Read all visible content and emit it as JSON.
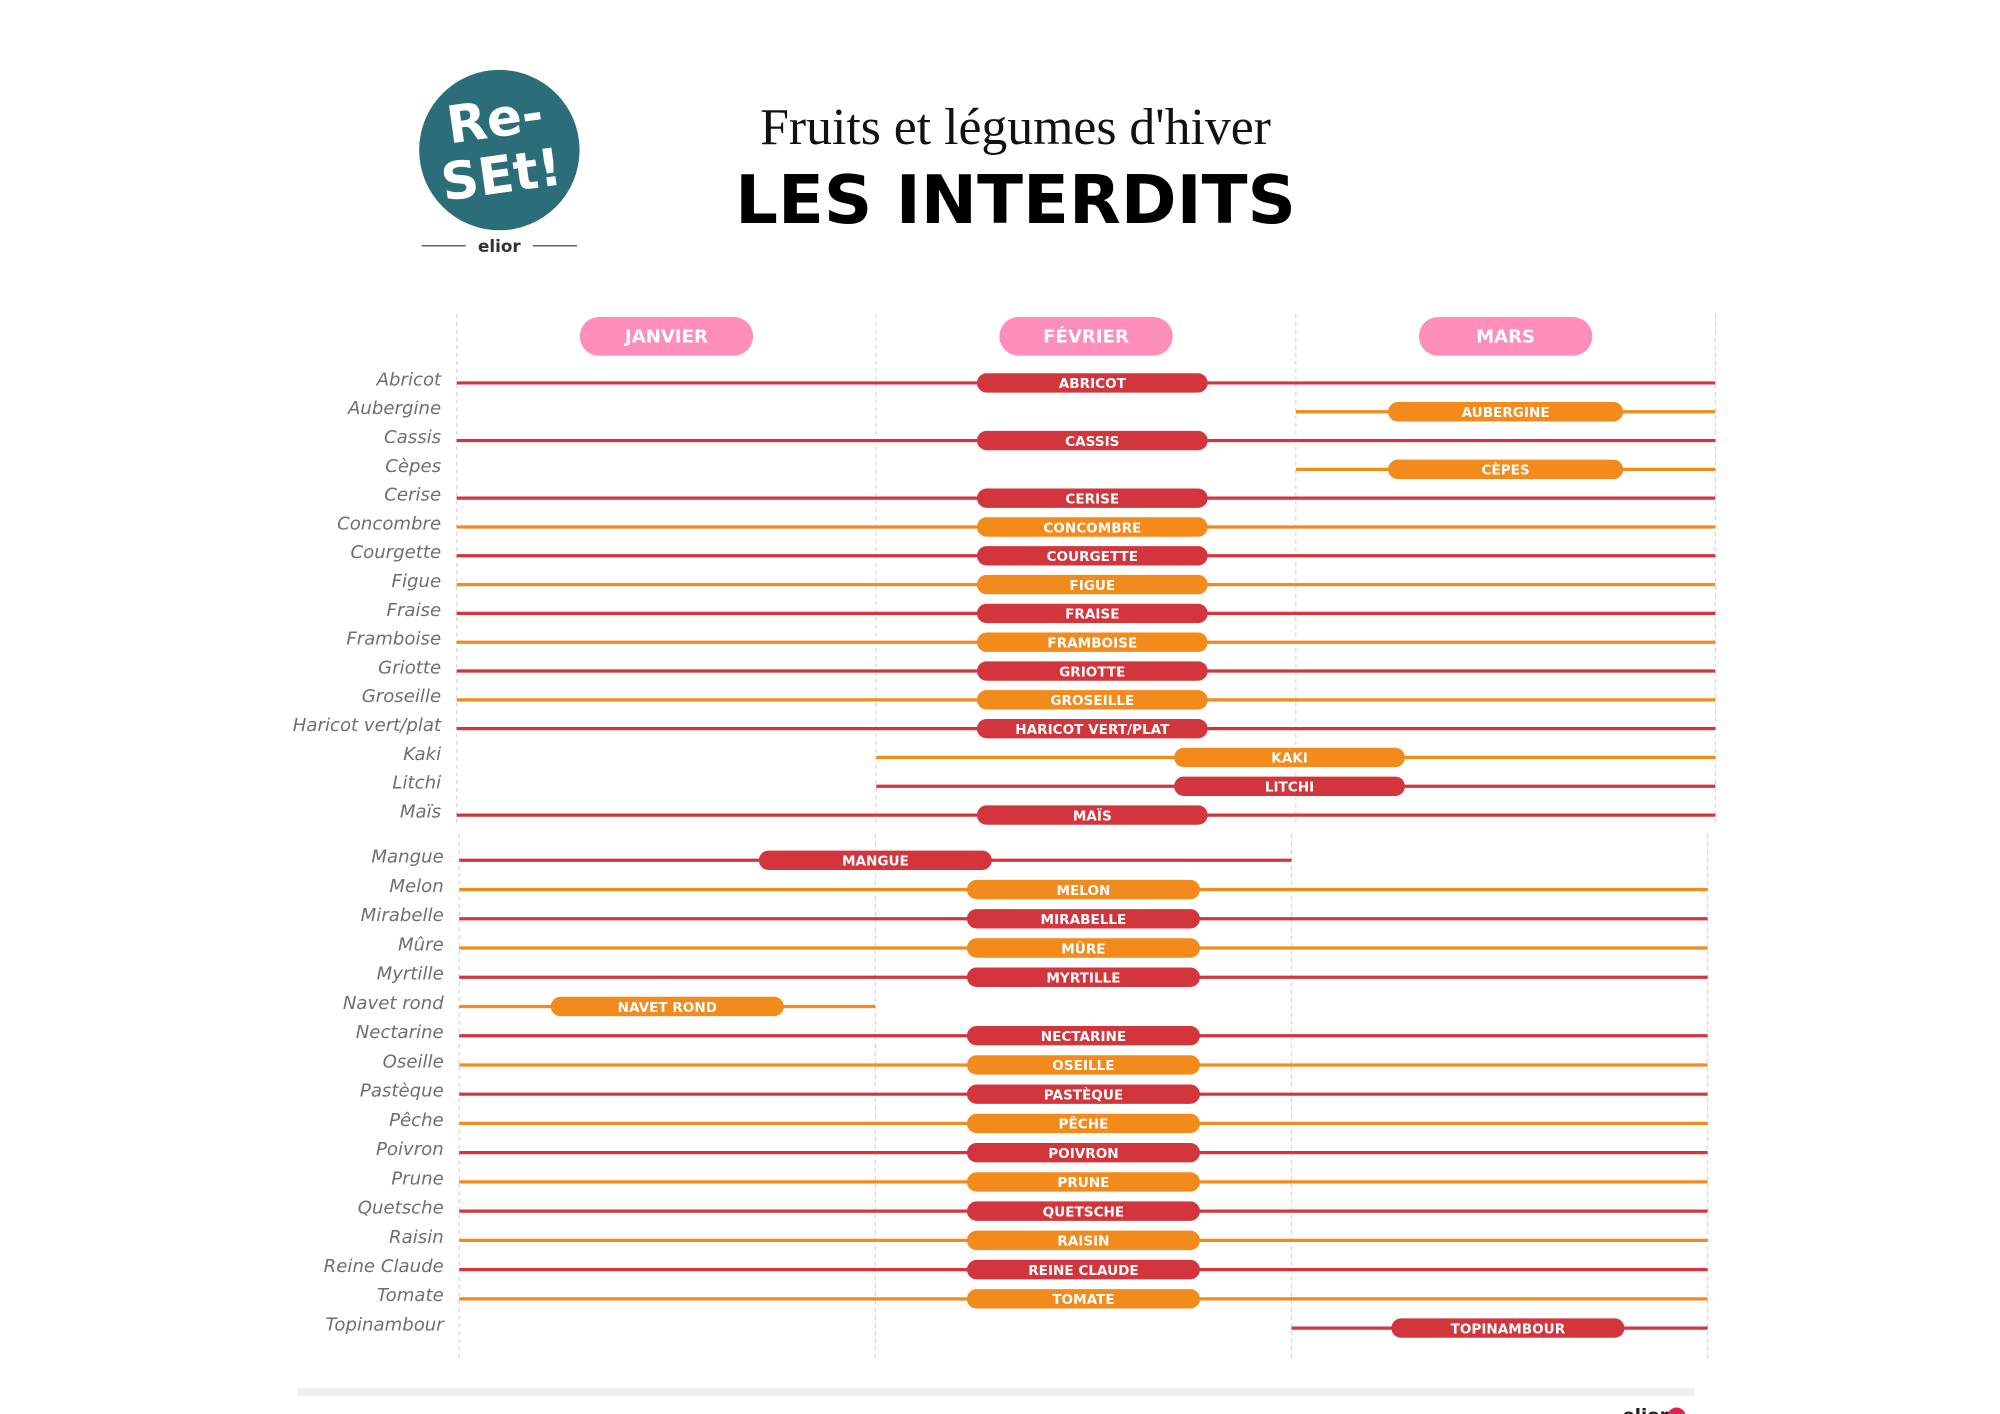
{
  "logo": {
    "line1": "Re-",
    "line2": "SEt!",
    "brand": "elior"
  },
  "footer": "elior",
  "chart_data": [
    {
      "type": "gantt",
      "title": "Fruits et légumes d'hiver",
      "subtitle": "LES INTERDITS",
      "categories": [
        "JANVIER",
        "FÉVRIER",
        "MARS"
      ],
      "category_color": "#fd8db9",
      "xlim": [
        0,
        3
      ],
      "xticks": [
        0,
        1,
        2,
        3
      ],
      "grid": true,
      "rows": [
        {
          "name": "Abricot",
          "label": "ABRICOT",
          "color": "#d2363c",
          "line": [
            0,
            3
          ],
          "pill": [
            1.24,
            1.79
          ]
        },
        {
          "name": "Aubergine",
          "label": "AUBERGINE",
          "color": "#f28a1c",
          "line": [
            2,
            3
          ],
          "pill": [
            2.22,
            2.78
          ]
        },
        {
          "name": "Cassis",
          "label": "CASSIS",
          "color": "#d2363c",
          "line": [
            0,
            3
          ],
          "pill": [
            1.24,
            1.79
          ]
        },
        {
          "name": "Cèpes",
          "label": "CÈPES",
          "color": "#f28a1c",
          "line": [
            2,
            3
          ],
          "pill": [
            2.22,
            2.78
          ]
        },
        {
          "name": "Cerise",
          "label": "CERISE",
          "color": "#d2363c",
          "line": [
            0,
            3
          ],
          "pill": [
            1.24,
            1.79
          ]
        },
        {
          "name": "Concombre",
          "label": "CONCOMBRE",
          "color": "#f28a1c",
          "line": [
            0,
            3
          ],
          "pill": [
            1.24,
            1.79
          ]
        },
        {
          "name": "Courgette",
          "label": "COURGETTE",
          "color": "#d2363c",
          "line": [
            0,
            3
          ],
          "pill": [
            1.24,
            1.79
          ]
        },
        {
          "name": "Figue",
          "label": "FIGUE",
          "color": "#f28a1c",
          "line": [
            0,
            3
          ],
          "pill": [
            1.24,
            1.79
          ]
        },
        {
          "name": "Fraise",
          "label": "FRAISE",
          "color": "#d2363c",
          "line": [
            0,
            3
          ],
          "pill": [
            1.24,
            1.79
          ]
        },
        {
          "name": "Framboise",
          "label": "FRAMBOISE",
          "color": "#f28a1c",
          "line": [
            0,
            3
          ],
          "pill": [
            1.24,
            1.79
          ]
        },
        {
          "name": "Griotte",
          "label": "GRIOTTE",
          "color": "#d2363c",
          "line": [
            0,
            3
          ],
          "pill": [
            1.24,
            1.79
          ]
        },
        {
          "name": "Groseille",
          "label": "GROSEILLE",
          "color": "#f28a1c",
          "line": [
            0,
            3
          ],
          "pill": [
            1.24,
            1.79
          ]
        },
        {
          "name": "Haricot vert/plat",
          "label": "HARICOT VERT/PLAT",
          "color": "#d2363c",
          "line": [
            0,
            3
          ],
          "pill": [
            1.24,
            1.79
          ]
        },
        {
          "name": "Kaki",
          "label": "KAKI",
          "color": "#f28a1c",
          "line": [
            1,
            3
          ],
          "pill": [
            1.71,
            2.26
          ]
        },
        {
          "name": "Litchi",
          "label": "LITCHI",
          "color": "#d2363c",
          "line": [
            1,
            3
          ],
          "pill": [
            1.71,
            2.26
          ]
        },
        {
          "name": "Maïs",
          "label": "MAÏS",
          "color": "#d2363c",
          "line": [
            0,
            3
          ],
          "pill": [
            1.24,
            1.79
          ]
        }
      ]
    },
    {
      "type": "gantt",
      "xlim": [
        0,
        3
      ],
      "xticks": [
        0,
        1,
        2,
        3
      ],
      "grid": true,
      "rows": [
        {
          "name": "Mangue",
          "label": "MANGUE",
          "color": "#d2363c",
          "line": [
            0,
            2
          ],
          "pill": [
            0.72,
            1.28
          ]
        },
        {
          "name": "Melon",
          "label": "MELON",
          "color": "#f28a1c",
          "line": [
            0,
            3
          ],
          "pill": [
            1.22,
            1.78
          ]
        },
        {
          "name": "Mirabelle",
          "label": "MIRABELLE",
          "color": "#d2363c",
          "line": [
            0,
            3
          ],
          "pill": [
            1.22,
            1.78
          ]
        },
        {
          "name": "Mûre",
          "label": "MÛRE",
          "color": "#f28a1c",
          "line": [
            0,
            3
          ],
          "pill": [
            1.22,
            1.78
          ]
        },
        {
          "name": "Myrtille",
          "label": "MYRTILLE",
          "color": "#d2363c",
          "line": [
            0,
            3
          ],
          "pill": [
            1.22,
            1.78
          ]
        },
        {
          "name": "Navet rond",
          "label": "NAVET ROND",
          "color": "#f28a1c",
          "line": [
            0,
            1
          ],
          "pill": [
            0.22,
            0.78
          ]
        },
        {
          "name": "Nectarine",
          "label": "NECTARINE",
          "color": "#d2363c",
          "line": [
            0,
            3
          ],
          "pill": [
            1.22,
            1.78
          ]
        },
        {
          "name": "Oseille",
          "label": "OSEILLE",
          "color": "#f28a1c",
          "line": [
            0,
            3
          ],
          "pill": [
            1.22,
            1.78
          ]
        },
        {
          "name": "Pastèque",
          "label": "PASTÈQUE",
          "color": "#d2363c",
          "line": [
            0,
            3
          ],
          "pill": [
            1.22,
            1.78
          ]
        },
        {
          "name": "Pêche",
          "label": "PÊCHE",
          "color": "#f28a1c",
          "line": [
            0,
            3
          ],
          "pill": [
            1.22,
            1.78
          ]
        },
        {
          "name": "Poivron",
          "label": "POIVRON",
          "color": "#d2363c",
          "line": [
            0,
            3
          ],
          "pill": [
            1.22,
            1.78
          ]
        },
        {
          "name": "Prune",
          "label": "PRUNE",
          "color": "#f28a1c",
          "line": [
            0,
            3
          ],
          "pill": [
            1.22,
            1.78
          ]
        },
        {
          "name": "Quetsche",
          "label": "QUETSCHE",
          "color": "#d2363c",
          "line": [
            0,
            3
          ],
          "pill": [
            1.22,
            1.78
          ]
        },
        {
          "name": "Raisin",
          "label": "RAISIN",
          "color": "#f28a1c",
          "line": [
            0,
            3
          ],
          "pill": [
            1.22,
            1.78
          ]
        },
        {
          "name": "Reine Claude",
          "label": "REINE CLAUDE",
          "color": "#d2363c",
          "line": [
            0,
            3
          ],
          "pill": [
            1.22,
            1.78
          ]
        },
        {
          "name": "Tomate",
          "label": "TOMATE",
          "color": "#f28a1c",
          "line": [
            0,
            3
          ],
          "pill": [
            1.22,
            1.78
          ]
        },
        {
          "name": "Topinambour",
          "label": "TOPINAMBOUR",
          "color": "#d2363c",
          "line": [
            2,
            3
          ],
          "pill": [
            2.24,
            2.8
          ]
        }
      ]
    }
  ]
}
